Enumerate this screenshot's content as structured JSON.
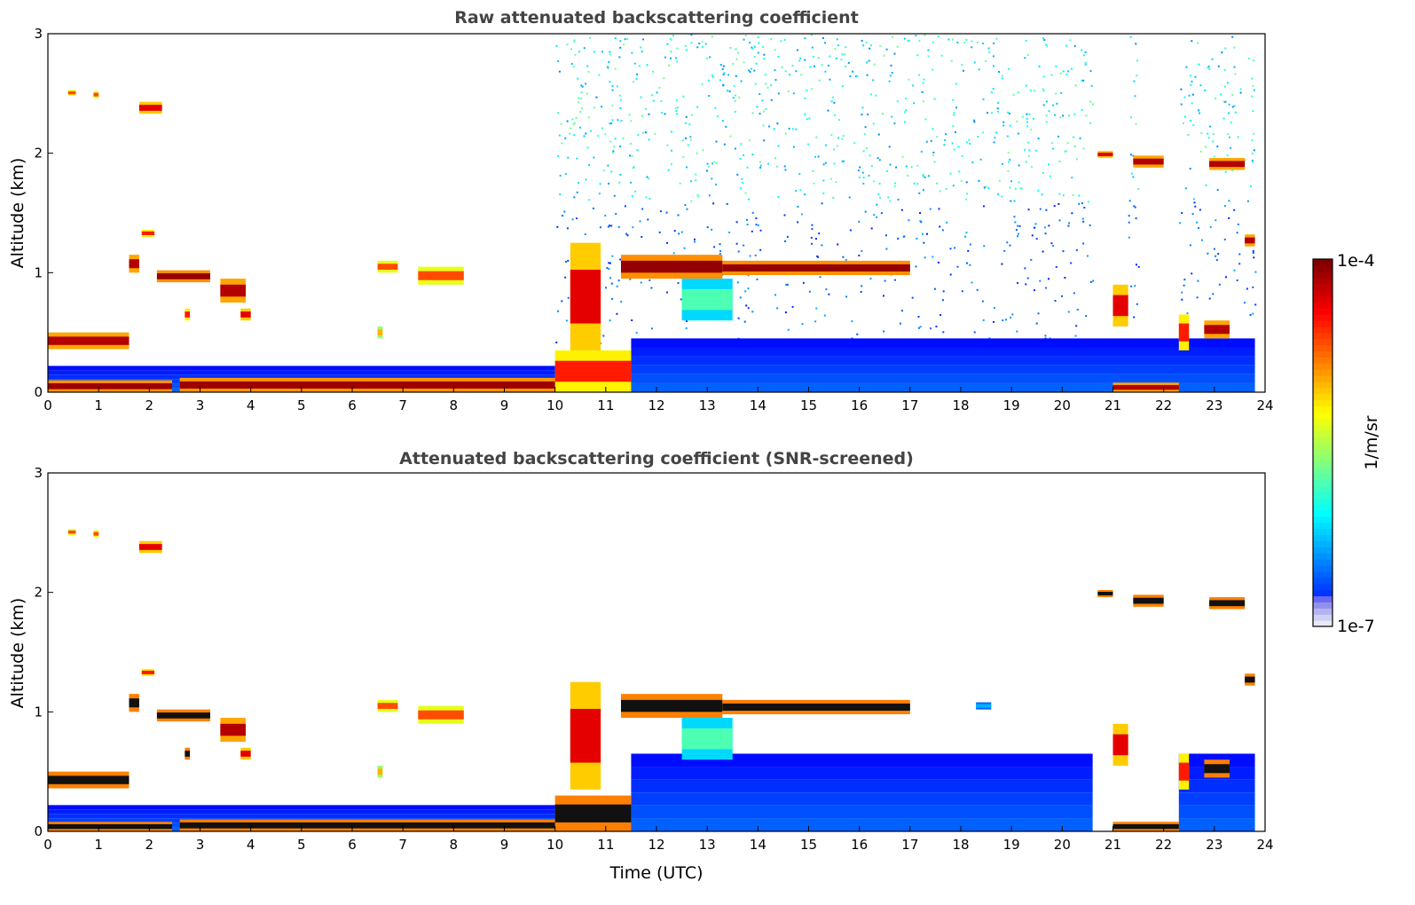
{
  "chart_data": [
    {
      "type": "heatmap",
      "title": "Raw attenuated backscattering coefficient",
      "xlabel": "",
      "ylabel": "Altitude (km)",
      "xlim": [
        0,
        24
      ],
      "ylim": [
        0,
        3
      ],
      "x_ticks": [
        "0",
        "1",
        "2",
        "3",
        "4",
        "5",
        "6",
        "7",
        "8",
        "9",
        "10",
        "11",
        "12",
        "13",
        "14",
        "15",
        "16",
        "17",
        "18",
        "19",
        "20",
        "21",
        "22",
        "23",
        "24"
      ],
      "y_ticks": [
        "0",
        "1",
        "2",
        "3"
      ],
      "noise": {
        "start": 10.0,
        "end": 23.8,
        "gaps": [
          [
            20.6,
            21.3
          ],
          [
            21.5,
            22.3
          ]
        ]
      },
      "background_layer": [
        {
          "t0": 0.0,
          "t1": 11.5,
          "alt_top": 0.22
        },
        {
          "t0": 11.5,
          "t1": 23.8,
          "alt_top": 0.45
        }
      ],
      "features": [
        {
          "t0": 0.0,
          "t1": 2.45,
          "a0": 0.0,
          "a1": 0.1,
          "level": 0.97
        },
        {
          "t0": 2.6,
          "t1": 10.0,
          "a0": 0.0,
          "a1": 0.12,
          "level": 0.97
        },
        {
          "t0": 10.0,
          "t1": 11.5,
          "a0": 0.0,
          "a1": 0.35,
          "level": 0.85
        },
        {
          "t0": 10.3,
          "t1": 10.9,
          "a0": 0.35,
          "a1": 1.25,
          "level": 0.9
        },
        {
          "t0": 0.0,
          "t1": 1.6,
          "a0": 0.36,
          "a1": 0.5,
          "level": 0.95
        },
        {
          "t0": 0.4,
          "t1": 0.55,
          "a0": 2.48,
          "a1": 2.53,
          "level": 0.8
        },
        {
          "t0": 0.9,
          "t1": 1.0,
          "a0": 2.46,
          "a1": 2.52,
          "level": 0.8
        },
        {
          "t0": 1.8,
          "t1": 2.25,
          "a0": 2.33,
          "a1": 2.43,
          "level": 0.9
        },
        {
          "t0": 1.85,
          "t1": 2.1,
          "a0": 1.3,
          "a1": 1.36,
          "level": 0.85
        },
        {
          "t0": 1.6,
          "t1": 1.8,
          "a0": 1.0,
          "a1": 1.15,
          "level": 0.95
        },
        {
          "t0": 2.15,
          "t1": 3.2,
          "a0": 0.92,
          "a1": 1.02,
          "level": 0.98
        },
        {
          "t0": 3.4,
          "t1": 3.9,
          "a0": 0.75,
          "a1": 0.95,
          "level": 0.95
        },
        {
          "t0": 3.8,
          "t1": 4.0,
          "a0": 0.6,
          "a1": 0.7,
          "level": 0.9
        },
        {
          "t0": 2.7,
          "t1": 2.8,
          "a0": 0.6,
          "a1": 0.7,
          "level": 0.85
        },
        {
          "t0": 6.5,
          "t1": 6.9,
          "a0": 1.0,
          "a1": 1.1,
          "level": 0.8
        },
        {
          "t0": 7.3,
          "t1": 8.2,
          "a0": 0.9,
          "a1": 1.05,
          "level": 0.8
        },
        {
          "t0": 6.5,
          "t1": 6.6,
          "a0": 0.45,
          "a1": 0.55,
          "level": 0.7
        },
        {
          "t0": 11.3,
          "t1": 13.3,
          "a0": 0.95,
          "a1": 1.15,
          "level": 0.98
        },
        {
          "t0": 13.3,
          "t1": 17.0,
          "a0": 0.98,
          "a1": 1.1,
          "level": 0.98
        },
        {
          "t0": 12.5,
          "t1": 13.5,
          "a0": 0.6,
          "a1": 0.95,
          "level": 0.45
        },
        {
          "t0": 20.7,
          "t1": 21.0,
          "a0": 1.96,
          "a1": 2.02,
          "level": 0.9
        },
        {
          "t0": 21.4,
          "t1": 22.0,
          "a0": 1.88,
          "a1": 1.98,
          "level": 0.95
        },
        {
          "t0": 22.9,
          "t1": 23.6,
          "a0": 1.86,
          "a1": 1.96,
          "level": 0.95
        },
        {
          "t0": 23.6,
          "t1": 23.8,
          "a0": 1.22,
          "a1": 1.32,
          "level": 0.95
        },
        {
          "t0": 21.0,
          "t1": 21.3,
          "a0": 0.55,
          "a1": 0.9,
          "level": 0.9
        },
        {
          "t0": 22.8,
          "t1": 23.3,
          "a0": 0.45,
          "a1": 0.6,
          "level": 0.95
        },
        {
          "t0": 21.0,
          "t1": 22.3,
          "a0": 0.0,
          "a1": 0.08,
          "level": 0.95
        },
        {
          "t0": 22.3,
          "t1": 22.5,
          "a0": 0.35,
          "a1": 0.65,
          "level": 0.85
        }
      ]
    },
    {
      "type": "heatmap",
      "title": "Attenuated backscattering coefficient (SNR-screened)",
      "xlabel": "Time (UTC)",
      "ylabel": "Altitude (km)",
      "xlim": [
        0,
        24
      ],
      "ylim": [
        0,
        3
      ],
      "x_ticks": [
        "0",
        "1",
        "2",
        "3",
        "4",
        "5",
        "6",
        "7",
        "8",
        "9",
        "10",
        "11",
        "12",
        "13",
        "14",
        "15",
        "16",
        "17",
        "18",
        "19",
        "20",
        "21",
        "22",
        "23",
        "24"
      ],
      "y_ticks": [
        "0",
        "1",
        "2",
        "3"
      ],
      "background_layer": [
        {
          "t0": 0.0,
          "t1": 11.5,
          "alt_top": 0.22
        },
        {
          "t0": 11.5,
          "t1": 20.6,
          "alt_top": 0.65
        },
        {
          "t0": 22.3,
          "t1": 23.8,
          "alt_top": 0.65
        }
      ],
      "features": [
        {
          "t0": 0.0,
          "t1": 2.45,
          "a0": 0.0,
          "a1": 0.08,
          "level": 1.0
        },
        {
          "t0": 2.6,
          "t1": 10.0,
          "a0": 0.0,
          "a1": 0.1,
          "level": 1.0
        },
        {
          "t0": 10.0,
          "t1": 11.5,
          "a0": 0.0,
          "a1": 0.3,
          "level": 1.0
        },
        {
          "t0": 10.3,
          "t1": 10.9,
          "a0": 0.35,
          "a1": 1.25,
          "level": 0.9
        },
        {
          "t0": 0.0,
          "t1": 1.6,
          "a0": 0.36,
          "a1": 0.5,
          "level": 1.0
        },
        {
          "t0": 0.4,
          "t1": 0.55,
          "a0": 2.48,
          "a1": 2.53,
          "level": 0.8
        },
        {
          "t0": 0.9,
          "t1": 1.0,
          "a0": 2.46,
          "a1": 2.52,
          "level": 0.8
        },
        {
          "t0": 1.8,
          "t1": 2.25,
          "a0": 2.33,
          "a1": 2.43,
          "level": 0.9
        },
        {
          "t0": 1.85,
          "t1": 2.1,
          "a0": 1.3,
          "a1": 1.36,
          "level": 0.85
        },
        {
          "t0": 1.6,
          "t1": 1.8,
          "a0": 1.0,
          "a1": 1.15,
          "level": 1.0
        },
        {
          "t0": 2.15,
          "t1": 3.2,
          "a0": 0.92,
          "a1": 1.02,
          "level": 1.0
        },
        {
          "t0": 3.4,
          "t1": 3.9,
          "a0": 0.75,
          "a1": 0.95,
          "level": 0.95
        },
        {
          "t0": 3.8,
          "t1": 4.0,
          "a0": 0.6,
          "a1": 0.7,
          "level": 0.9
        },
        {
          "t0": 2.7,
          "t1": 2.8,
          "a0": 0.6,
          "a1": 0.7,
          "level": 1.0
        },
        {
          "t0": 6.5,
          "t1": 6.9,
          "a0": 1.0,
          "a1": 1.1,
          "level": 0.8
        },
        {
          "t0": 7.3,
          "t1": 8.2,
          "a0": 0.9,
          "a1": 1.05,
          "level": 0.8
        },
        {
          "t0": 6.5,
          "t1": 6.6,
          "a0": 0.45,
          "a1": 0.55,
          "level": 0.7
        },
        {
          "t0": 11.3,
          "t1": 13.3,
          "a0": 0.95,
          "a1": 1.15,
          "level": 1.0
        },
        {
          "t0": 13.3,
          "t1": 17.0,
          "a0": 0.98,
          "a1": 1.1,
          "level": 1.0
        },
        {
          "t0": 12.5,
          "t1": 13.5,
          "a0": 0.6,
          "a1": 0.95,
          "level": 0.45
        },
        {
          "t0": 20.7,
          "t1": 21.0,
          "a0": 1.96,
          "a1": 2.02,
          "level": 1.0
        },
        {
          "t0": 21.4,
          "t1": 22.0,
          "a0": 1.88,
          "a1": 1.98,
          "level": 1.0
        },
        {
          "t0": 22.9,
          "t1": 23.6,
          "a0": 1.86,
          "a1": 1.96,
          "level": 1.0
        },
        {
          "t0": 23.6,
          "t1": 23.8,
          "a0": 1.22,
          "a1": 1.32,
          "level": 1.0
        },
        {
          "t0": 21.0,
          "t1": 21.3,
          "a0": 0.55,
          "a1": 0.9,
          "level": 0.9
        },
        {
          "t0": 22.8,
          "t1": 23.3,
          "a0": 0.45,
          "a1": 0.6,
          "level": 1.0
        },
        {
          "t0": 21.0,
          "t1": 22.3,
          "a0": 0.0,
          "a1": 0.08,
          "level": 1.0
        },
        {
          "t0": 22.3,
          "t1": 22.5,
          "a0": 0.35,
          "a1": 0.65,
          "level": 0.85
        },
        {
          "t0": 18.3,
          "t1": 18.6,
          "a0": 1.02,
          "a1": 1.08,
          "level": 0.3
        }
      ]
    }
  ],
  "colorbar": {
    "label": "1/m/sr",
    "max_label": "1e-4",
    "min_label": "1e-7",
    "colormap": "jet",
    "low_color": "#e8e8f8"
  }
}
